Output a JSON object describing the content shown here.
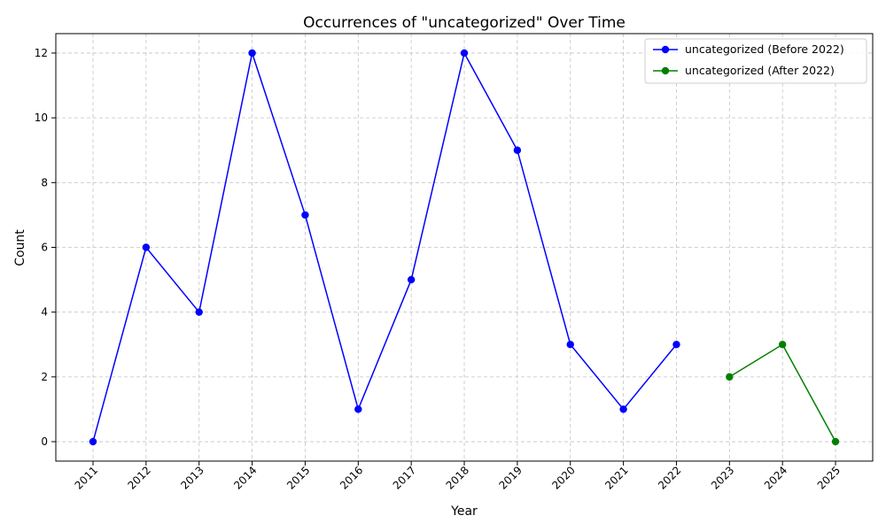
{
  "chart_data": {
    "type": "line",
    "title": "Occurrences of \"uncategorized\" Over Time",
    "xlabel": "Year",
    "ylabel": "Count",
    "x": [
      "2011",
      "2012",
      "2013",
      "2014",
      "2015",
      "2016",
      "2017",
      "2018",
      "2019",
      "2020",
      "2021",
      "2022",
      "2023",
      "2024",
      "2025"
    ],
    "ylim": [
      -0.6,
      12.6
    ],
    "yticks": [
      0,
      2,
      4,
      6,
      8,
      10,
      12
    ],
    "grid": true,
    "legend_position": "top-right",
    "series": [
      {
        "name": "uncategorized (Before 2022)",
        "color": "#0000ff",
        "x": [
          "2011",
          "2012",
          "2013",
          "2014",
          "2015",
          "2016",
          "2017",
          "2018",
          "2019",
          "2020",
          "2021",
          "2022"
        ],
        "values": [
          0,
          6,
          4,
          12,
          7,
          1,
          5,
          12,
          9,
          3,
          1,
          3
        ]
      },
      {
        "name": "uncategorized (After 2022)",
        "color": "#008000",
        "x": [
          "2023",
          "2024",
          "2025"
        ],
        "values": [
          2,
          3,
          0
        ]
      }
    ]
  }
}
